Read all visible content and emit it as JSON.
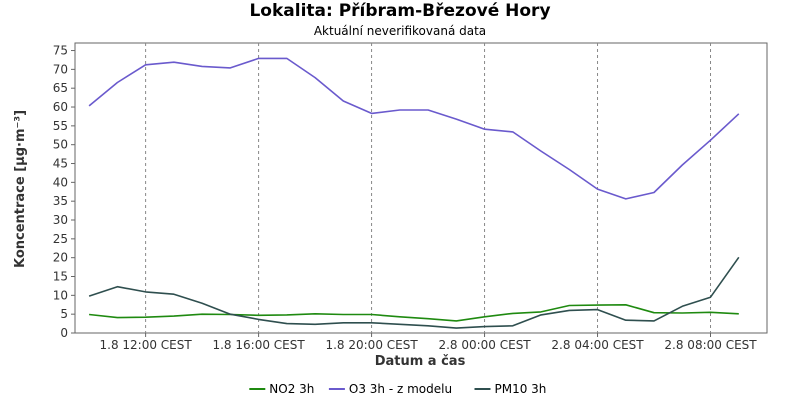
{
  "header": {
    "title": "Lokalita: Příbram-Březové Hory",
    "subtitle": "Aktuální neverifikovaná data"
  },
  "colors": {
    "NO2 3h": "#1f8a10",
    "O3 3h - z modelu": "#6a5acd",
    "PM10 3h": "#2f4f4f",
    "grid": "#888888",
    "axis": "#666666"
  },
  "chart_data": {
    "type": "line",
    "title": "Lokalita: Příbram-Březové Hory",
    "subtitle": "Aktuální neverifikovaná data",
    "xlabel": "Datum a čas",
    "ylabel": "Koncentrace [µg·m⁻³]",
    "ylim": [
      0,
      77
    ],
    "yticks": [
      0,
      5,
      10,
      15,
      20,
      25,
      30,
      35,
      40,
      45,
      50,
      55,
      60,
      65,
      70,
      75
    ],
    "xlim": [
      "2024-08-01T09:30",
      "2024-08-02T10:00"
    ],
    "xticks": [
      {
        "time": "2024-08-01T12:00",
        "label": "1.8 12:00 CEST"
      },
      {
        "time": "2024-08-01T16:00",
        "label": "1.8 16:00 CEST"
      },
      {
        "time": "2024-08-01T20:00",
        "label": "1.8 20:00 CEST"
      },
      {
        "time": "2024-08-02T00:00",
        "label": "2.8 00:00 CEST"
      },
      {
        "time": "2024-08-02T04:00",
        "label": "2.8 04:00 CEST"
      },
      {
        "time": "2024-08-02T08:00",
        "label": "2.8 08:00 CEST"
      }
    ],
    "grid": true,
    "legend_position": "bottom",
    "x": [
      "2024-08-01T10:00",
      "2024-08-01T11:00",
      "2024-08-01T12:00",
      "2024-08-01T13:00",
      "2024-08-01T14:00",
      "2024-08-01T15:00",
      "2024-08-01T16:00",
      "2024-08-01T17:00",
      "2024-08-01T18:00",
      "2024-08-01T19:00",
      "2024-08-01T20:00",
      "2024-08-01T21:00",
      "2024-08-01T22:00",
      "2024-08-01T23:00",
      "2024-08-02T00:00",
      "2024-08-02T01:00",
      "2024-08-02T02:00",
      "2024-08-02T03:00",
      "2024-08-02T04:00",
      "2024-08-02T05:00",
      "2024-08-02T06:00",
      "2024-08-02T07:00",
      "2024-08-02T08:00",
      "2024-08-02T09:00"
    ],
    "series": [
      {
        "name": "NO2 3h",
        "values": [
          4.9,
          4.1,
          4.2,
          4.5,
          5.0,
          4.9,
          4.7,
          4.8,
          5.1,
          4.9,
          4.9,
          4.3,
          3.8,
          3.2,
          4.3,
          5.2,
          5.6,
          7.3,
          7.4,
          7.5,
          5.4,
          5.3,
          5.5,
          5.1
        ]
      },
      {
        "name": "O3 3h - z modelu",
        "values": [
          60.3,
          66.5,
          71.2,
          71.9,
          70.8,
          70.4,
          72.9,
          72.9,
          67.8,
          61.6,
          58.3,
          59.2,
          59.2,
          56.8,
          54.1,
          53.4,
          48.3,
          43.4,
          38.2,
          35.6,
          37.3,
          44.6,
          51.2,
          58.2
        ]
      },
      {
        "name": "PM10 3h",
        "values": [
          9.8,
          12.3,
          10.9,
          10.3,
          7.9,
          5.0,
          3.6,
          2.5,
          2.3,
          2.7,
          2.7,
          2.3,
          1.9,
          1.3,
          1.7,
          1.9,
          4.8,
          6.0,
          6.2,
          3.4,
          3.2,
          7.1,
          9.5,
          20.1
        ]
      }
    ]
  }
}
